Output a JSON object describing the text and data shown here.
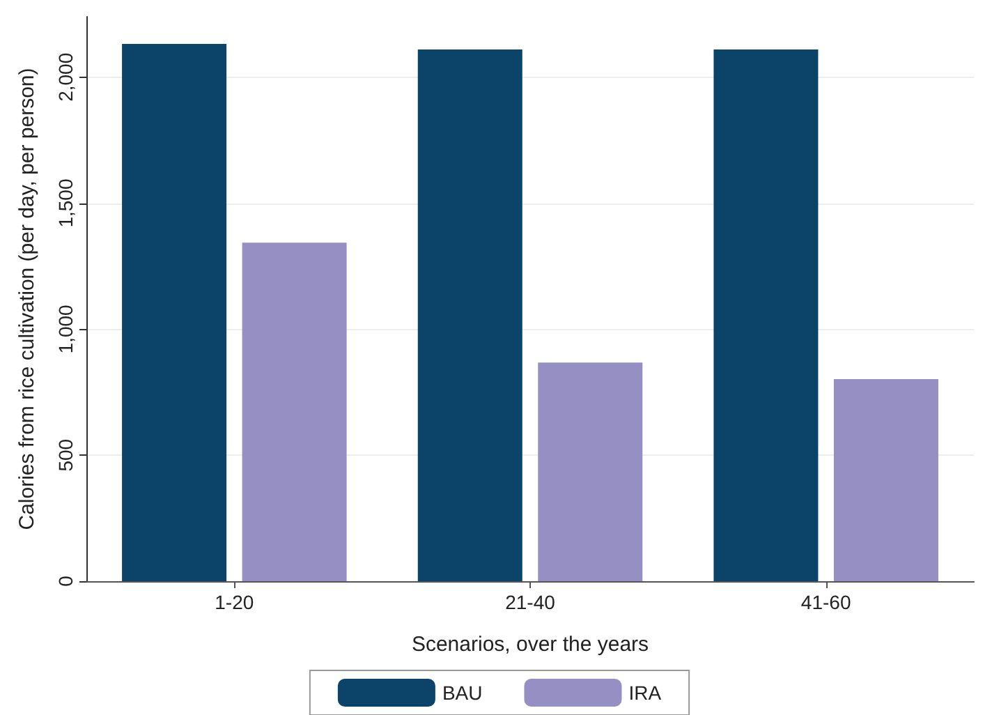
{
  "chart_data": {
    "type": "bar",
    "xlabel": "Scenarios, over the years",
    "ylabel": "Calories from rice cultivation (per day, per person)",
    "categories": [
      "1-20",
      "21-40",
      "41-60"
    ],
    "series": [
      {
        "name": "BAU",
        "color": "#0c4369",
        "values": [
          2132,
          2110,
          2110
        ]
      },
      {
        "name": "IRA",
        "color": "#968fc4",
        "values": [
          1343,
          868,
          802
        ]
      }
    ],
    "ylim": [
      0,
      2240
    ],
    "yticks": [
      0,
      {
        "value": 500,
        "label": "500"
      },
      {
        "value": 1000,
        "label": "1,000"
      },
      {
        "value": 1500,
        "label": "1,500"
      },
      {
        "value": 2000,
        "label": "2,000"
      }
    ],
    "grid": "y",
    "legend": "bottom"
  }
}
